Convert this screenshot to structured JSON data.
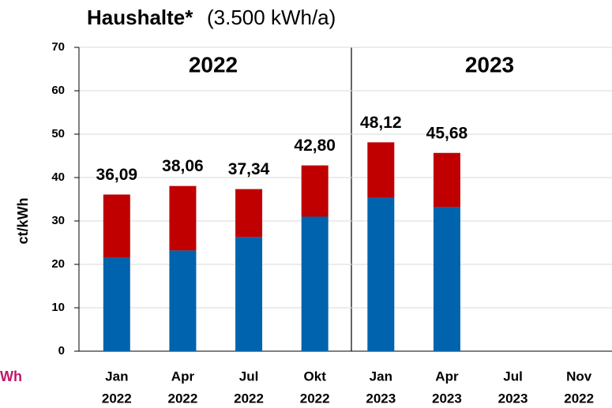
{
  "chart_data": {
    "type": "stacked_bar",
    "title": "Haushalte*",
    "subtitle": "(3.500 kWh/a)",
    "y_label": "ct/kWh",
    "annotations": [
      "2022",
      "2023",
      "Wh"
    ],
    "categories": [
      [
        "Jan",
        "2022"
      ],
      [
        "Apr",
        "2022"
      ],
      [
        "Jul",
        "2022"
      ],
      [
        "Okt",
        "2022"
      ],
      [
        "Jan",
        "2023"
      ],
      [
        "Apr",
        "2023"
      ],
      [
        "Jul",
        "2023"
      ],
      [
        "Nov",
        "2022"
      ]
    ],
    "series": [
      {
        "color": "#0063ad",
        "values": [
          21.5,
          23.2,
          26.3,
          31.0,
          35.3,
          33.2,
          null,
          null
        ]
      },
      {
        "color": "#c00000",
        "values": [
          14.59,
          14.86,
          11.04,
          11.8,
          12.82,
          12.48,
          null,
          null
        ]
      }
    ],
    "totals": [
      36.09,
      38.06,
      37.34,
      42.8,
      48.12,
      45.68,
      null,
      null
    ],
    "total_labels": [
      "36,09",
      "38,06",
      "37,34",
      "42,80",
      "48,12",
      "45,68",
      null,
      null
    ],
    "ylim": [
      0,
      70
    ],
    "yticks": [
      0,
      10,
      20,
      30,
      40,
      50,
      60,
      70
    ],
    "grid": true
  }
}
